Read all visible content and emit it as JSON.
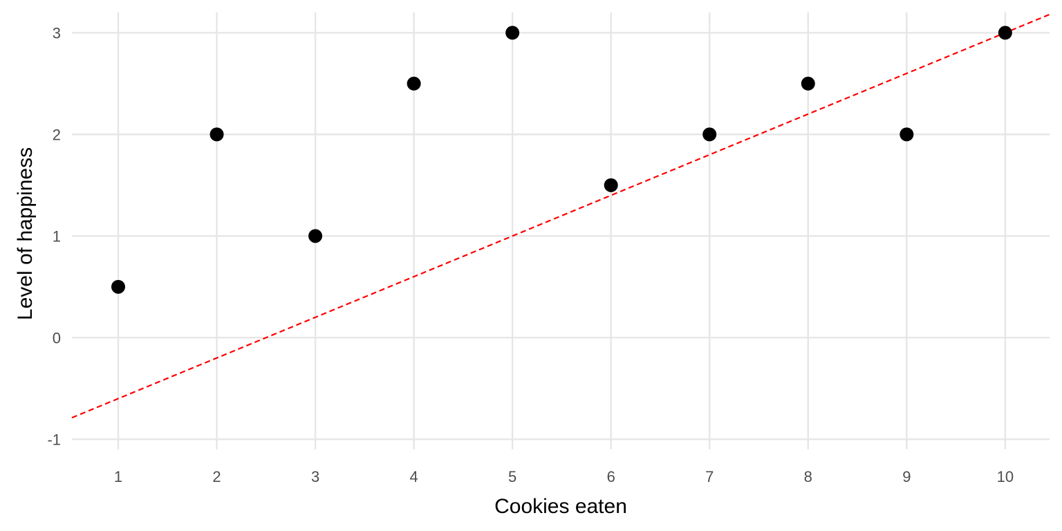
{
  "chart_data": {
    "type": "scatter",
    "title": "",
    "xlabel": "Cookies eaten",
    "ylabel": "Level of happiness",
    "x": [
      1,
      2,
      3,
      4,
      5,
      6,
      7,
      8,
      9,
      10
    ],
    "y": [
      0.5,
      2,
      1,
      2.5,
      3,
      1.5,
      2,
      2.5,
      2,
      3
    ],
    "x_ticks": [
      "1",
      "2",
      "3",
      "4",
      "5",
      "6",
      "7",
      "8",
      "9",
      "10"
    ],
    "y_ticks": [
      "-1",
      "0",
      "1",
      "2",
      "3"
    ],
    "xlim": [
      0.53,
      10.45
    ],
    "ylim": [
      -1.1,
      3.2
    ],
    "grid": true,
    "reference_line": {
      "style": "dashed",
      "color": "#ff0000",
      "intercept": -1,
      "slope": 0.4
    },
    "point_color": "#000000"
  }
}
